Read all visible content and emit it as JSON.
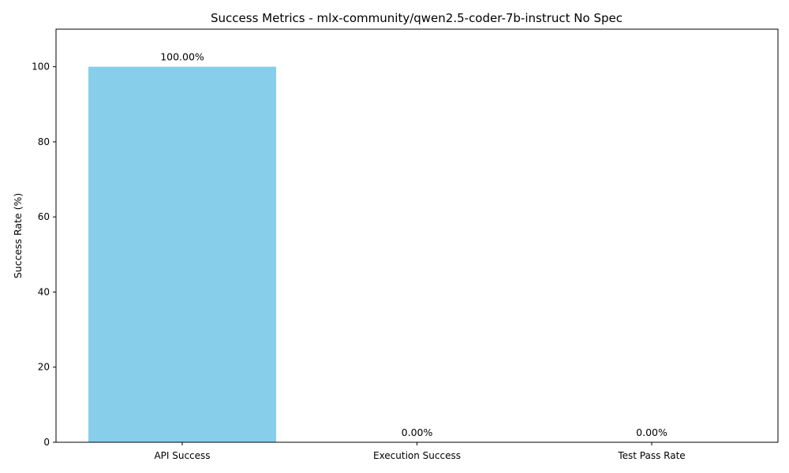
{
  "chart_data": {
    "type": "bar",
    "title": "Success Metrics - mlx-community/qwen2.5-coder-7b-instruct No Spec",
    "xlabel": "",
    "ylabel": "Success Rate (%)",
    "categories": [
      "API Success",
      "Execution Success",
      "Test Pass Rate"
    ],
    "values": [
      100,
      0,
      0
    ],
    "data_labels": [
      "100.00%",
      "0.00%",
      "0.00%"
    ],
    "ylim": [
      0,
      110
    ],
    "yticks": [
      0,
      20,
      40,
      60,
      80,
      100
    ],
    "grid": false,
    "legend": "none",
    "bar_color": "#87CEEB"
  }
}
